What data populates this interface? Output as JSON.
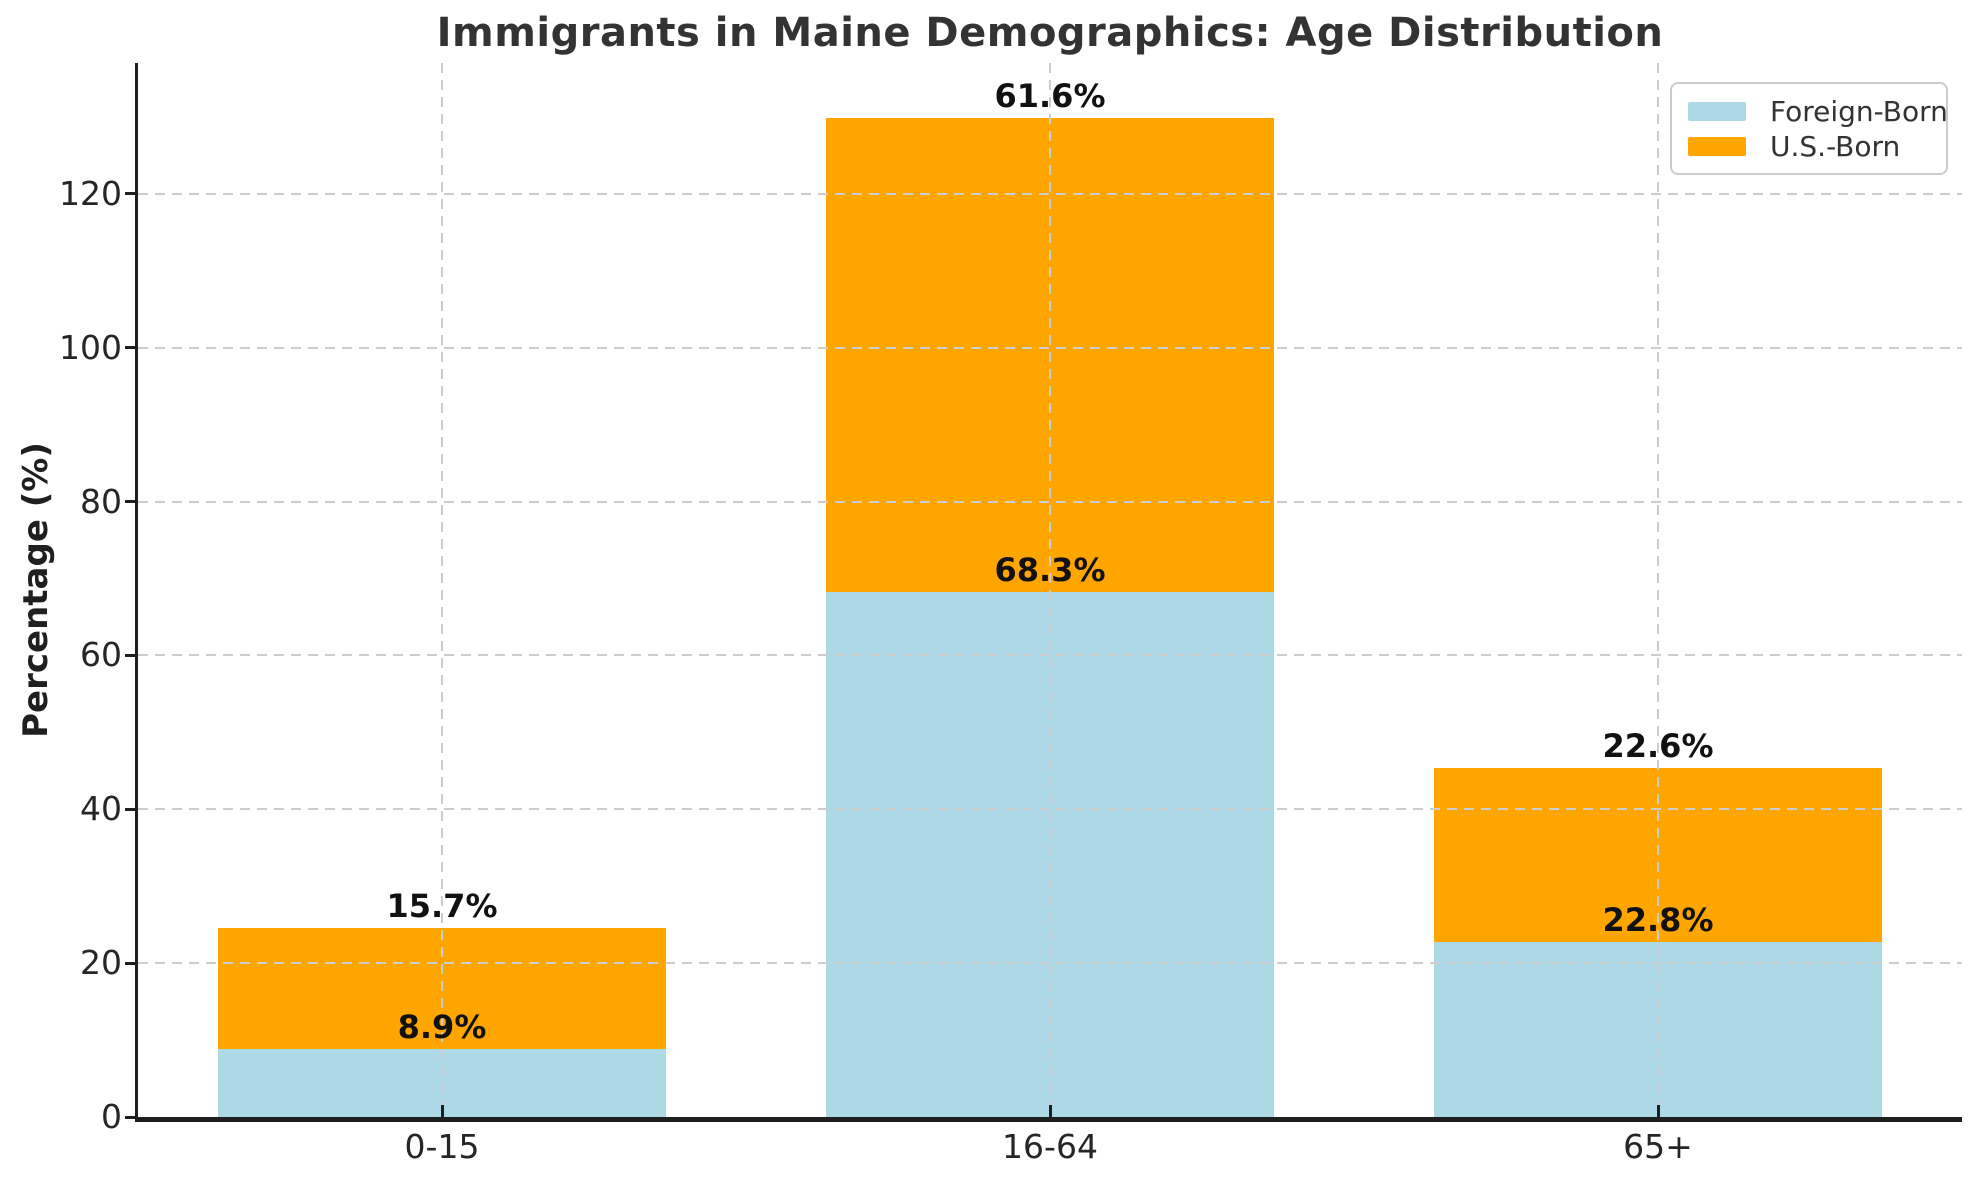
{
  "chart_data": {
    "type": "bar",
    "stacked": true,
    "title": "Immigrants in Maine Demographics: Age Distribution",
    "xlabel": "",
    "ylabel": "Percentage (%)",
    "categories": [
      "0-15",
      "16-64",
      "65+"
    ],
    "series": [
      {
        "name": "Foreign-Born",
        "color": "#ADD8E6",
        "values": [
          8.9,
          68.3,
          22.8
        ],
        "labels": [
          "8.9%",
          "68.3%",
          "22.8%"
        ]
      },
      {
        "name": "U.S.-Born",
        "color": "#FFA500",
        "values": [
          15.7,
          61.6,
          22.6
        ],
        "labels": [
          "15.7%",
          "61.6%",
          "22.6%"
        ]
      }
    ],
    "totals": [
      24.6,
      129.9,
      45.4
    ],
    "yticks": [
      0,
      20,
      40,
      60,
      80,
      100,
      120
    ],
    "ylim": [
      0,
      137
    ],
    "grid": "dashed gray, horizontal and vertical, drawn above bars",
    "legend_position": "upper right",
    "axis_color": "#1f1f1f",
    "grid_color": "#cdcdcd",
    "label_color": "#111111"
  }
}
